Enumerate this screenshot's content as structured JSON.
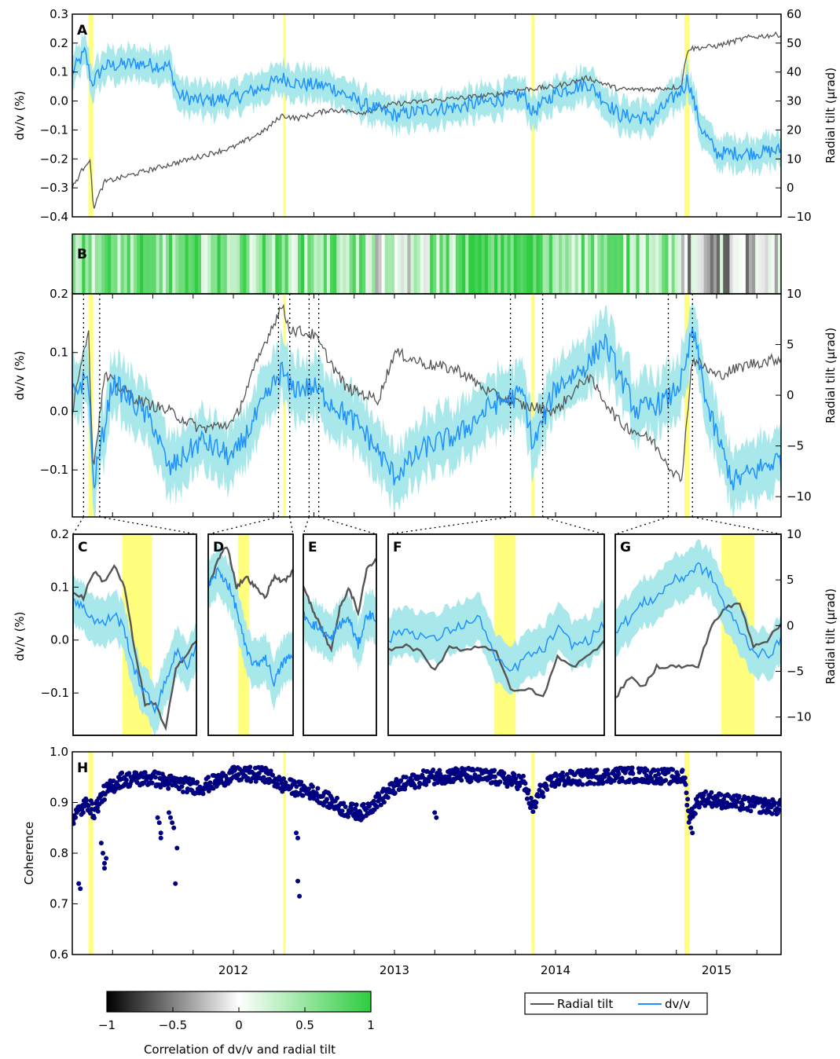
{
  "colors": {
    "tilt": "#555555",
    "dvv": "#1e90ff",
    "band": "#a8e8ea",
    "highlight": "#ffff66",
    "coherence": "#000080",
    "corr_low": "#000000",
    "corr_mid": "#ffffff",
    "corr_high": "#2ecc40"
  },
  "chart_data": [
    {
      "panel": "A",
      "type": "line",
      "ylabel": "dv/v (%)",
      "y2label": "Radial tilt (μrad)",
      "ylim": [
        -0.4,
        0.3
      ],
      "y2lim": [
        -10,
        60
      ],
      "yticks": [
        "0.3",
        "0.2",
        "0.1",
        "0.0",
        "−0.1",
        "−0.2",
        "−0.3",
        "−0.4"
      ],
      "y2ticks": [
        "60",
        "50",
        "40",
        "30",
        "20",
        "10",
        "0",
        "−10"
      ],
      "xlim": [
        2011.0,
        2015.4
      ],
      "highlights": [
        [
          2011.1,
          2011.13
        ],
        [
          2012.31,
          2012.32
        ],
        [
          2013.85,
          2013.87
        ],
        [
          2014.8,
          2014.83
        ]
      ],
      "series": [
        {
          "name": "dv/v",
          "x": [
            2011.0,
            2011.08,
            2011.12,
            2011.2,
            2011.4,
            2011.6,
            2011.66,
            2011.8,
            2012.0,
            2012.2,
            2012.3,
            2012.4,
            2012.6,
            2012.8,
            2013.0,
            2013.2,
            2013.4,
            2013.6,
            2013.8,
            2013.86,
            2014.0,
            2014.2,
            2014.4,
            2014.6,
            2014.8,
            2014.82,
            2014.9,
            2015.0,
            2015.2,
            2015.4
          ],
          "y": [
            0.1,
            0.17,
            0.06,
            0.12,
            0.13,
            0.12,
            0.02,
            0.0,
            0.01,
            0.05,
            0.08,
            0.06,
            0.05,
            -0.01,
            -0.05,
            -0.03,
            -0.02,
            0.0,
            0.02,
            -0.04,
            0.03,
            0.06,
            -0.05,
            -0.06,
            0.05,
            0.08,
            -0.09,
            -0.18,
            -0.18,
            -0.17
          ]
        },
        {
          "name": "Radial tilt",
          "x": [
            2011.0,
            2011.08,
            2011.11,
            2011.13,
            2011.2,
            2011.4,
            2011.6,
            2011.8,
            2012.0,
            2012.2,
            2012.3,
            2012.4,
            2012.6,
            2012.8,
            2013.0,
            2013.2,
            2013.4,
            2013.6,
            2013.8,
            2014.0,
            2014.2,
            2014.4,
            2014.6,
            2014.78,
            2014.82,
            2015.0,
            2015.2,
            2015.4
          ],
          "y": [
            -0.3,
            -0.22,
            -0.2,
            -0.37,
            -0.28,
            -0.25,
            -0.22,
            -0.19,
            -0.16,
            -0.1,
            -0.05,
            -0.06,
            -0.03,
            -0.04,
            -0.01,
            0.0,
            0.01,
            0.02,
            0.04,
            0.05,
            0.08,
            0.04,
            0.04,
            0.05,
            0.18,
            0.19,
            0.22,
            0.23
          ]
        }
      ]
    },
    {
      "panel": "B",
      "type": "line",
      "ylabel": "dv/v (%)",
      "y2label": "Radial tilt (μrad)",
      "ylim": [
        -0.18,
        0.2
      ],
      "yticks": [
        "0.2",
        "0.1",
        "0.0",
        "−0.1"
      ],
      "y2ticks": [
        "10",
        "5",
        "0",
        "−5",
        "−10"
      ],
      "colorbar_strip": "correlation per window, -1 to 1",
      "series": [
        {
          "name": "dv/v",
          "x": [
            2011.0,
            2011.1,
            2011.13,
            2011.25,
            2011.5,
            2011.6,
            2011.8,
            2012.0,
            2012.2,
            2012.3,
            2012.35,
            2012.5,
            2012.8,
            2013.0,
            2013.2,
            2013.4,
            2013.6,
            2013.8,
            2013.86,
            2014.0,
            2014.2,
            2014.3,
            2014.5,
            2014.7,
            2014.8,
            2014.85,
            2014.95,
            2015.1,
            2015.4
          ],
          "y": [
            0.03,
            0.06,
            -0.13,
            0.05,
            -0.02,
            -0.1,
            -0.05,
            -0.08,
            0.02,
            0.07,
            0.04,
            0.04,
            -0.03,
            -0.11,
            -0.06,
            -0.04,
            0.01,
            0.03,
            -0.06,
            0.04,
            0.08,
            0.12,
            0.0,
            0.02,
            0.06,
            0.14,
            0.0,
            -0.12,
            -0.08
          ]
        },
        {
          "name": "Radial tilt",
          "x": [
            2011.0,
            2011.05,
            2011.1,
            2011.13,
            2011.2,
            2011.4,
            2011.6,
            2011.8,
            2012.0,
            2012.2,
            2012.3,
            2012.35,
            2012.5,
            2012.7,
            2012.9,
            2013.0,
            2013.2,
            2013.4,
            2013.6,
            2013.8,
            2014.0,
            2014.2,
            2014.4,
            2014.6,
            2014.7,
            2014.78,
            2014.85,
            2015.0,
            2015.2,
            2015.4
          ],
          "y": [
            0.0,
            0.08,
            0.14,
            -0.1,
            0.06,
            0.02,
            0.0,
            -0.03,
            -0.02,
            0.12,
            0.18,
            0.14,
            0.13,
            0.04,
            0.02,
            0.1,
            0.08,
            0.07,
            0.03,
            0.01,
            0.0,
            0.06,
            -0.02,
            -0.05,
            -0.09,
            -0.12,
            0.09,
            0.06,
            0.08,
            0.09
          ]
        }
      ]
    },
    {
      "panel": "C–G",
      "type": "line",
      "ylabel": "dv/v (%)",
      "y2label": "Radial tilt (μrad)",
      "yticks": [
        "0.2",
        "0.1",
        "0.0",
        "−0.1"
      ],
      "y2ticks": [
        "10",
        "5",
        "0",
        "−5",
        "−10"
      ],
      "zooms": [
        {
          "label": "C",
          "dvv": [
            0.08,
            0.06,
            0.04,
            0.03,
            0.05,
            0.02,
            -0.06,
            -0.1,
            -0.13,
            -0.08,
            -0.02,
            -0.05,
            -0.01
          ],
          "tilt": [
            0.09,
            0.08,
            0.13,
            0.11,
            0.14,
            0.1,
            -0.02,
            -0.12,
            -0.12,
            -0.17,
            -0.05,
            -0.03,
            0.0
          ]
        },
        {
          "label": "D",
          "dvv": [
            0.1,
            0.13,
            0.11,
            0.06,
            -0.02,
            -0.05,
            -0.03,
            -0.08,
            -0.04,
            -0.03
          ],
          "tilt": [
            0.1,
            0.15,
            0.18,
            0.1,
            0.12,
            0.1,
            0.08,
            0.12,
            0.11,
            0.13
          ]
        },
        {
          "label": "E",
          "dvv": [
            0.05,
            0.03,
            0.02,
            0.0,
            0.03,
            0.04,
            -0.01,
            0.05,
            0.04
          ],
          "tilt": [
            0.1,
            0.06,
            0.02,
            -0.02,
            0.06,
            0.1,
            0.05,
            0.14,
            0.15
          ]
        },
        {
          "label": "F",
          "dvv": [
            0.0,
            0.02,
            0.01,
            0.0,
            0.02,
            0.03,
            0.04,
            -0.04,
            -0.06,
            -0.03,
            -0.02,
            0.02,
            -0.01,
            0.0,
            0.03
          ],
          "tilt": [
            -0.02,
            -0.01,
            -0.02,
            -0.06,
            -0.01,
            -0.02,
            -0.01,
            -0.02,
            -0.1,
            -0.09,
            -0.11,
            -0.03,
            -0.05,
            -0.03,
            0.0
          ]
        },
        {
          "label": "G",
          "dvv": [
            0.02,
            0.04,
            0.07,
            0.08,
            0.11,
            0.12,
            0.14,
            0.12,
            0.06,
            0.02,
            -0.02,
            -0.03,
            0.0
          ],
          "tilt": [
            -0.11,
            -0.07,
            -0.09,
            -0.05,
            -0.05,
            -0.05,
            -0.05,
            0.03,
            0.06,
            0.07,
            -0.01,
            0.0,
            0.03
          ]
        }
      ]
    },
    {
      "panel": "H",
      "type": "scatter",
      "ylabel": "Coherence",
      "ylim": [
        0.6,
        1.0
      ],
      "yticks": [
        "1.0",
        "0.9",
        "0.8",
        "0.7",
        "0.6"
      ],
      "xticks": [
        "2012",
        "2013",
        "2014",
        "2015"
      ],
      "xtick_values": [
        2012.0,
        2013.0,
        2014.0,
        2015.0
      ],
      "trend_x": [
        2011.0,
        2011.1,
        2011.13,
        2011.2,
        2011.3,
        2011.5,
        2011.6,
        2011.8,
        2012.0,
        2012.2,
        2012.3,
        2012.5,
        2012.7,
        2012.8,
        2013.0,
        2013.2,
        2013.4,
        2013.6,
        2013.8,
        2013.86,
        2013.9,
        2014.0,
        2014.2,
        2014.4,
        2014.6,
        2014.8,
        2014.83,
        2014.9,
        2015.1,
        2015.4
      ],
      "trend_y": [
        0.87,
        0.9,
        0.88,
        0.92,
        0.945,
        0.948,
        0.94,
        0.93,
        0.955,
        0.955,
        0.935,
        0.92,
        0.885,
        0.88,
        0.93,
        0.95,
        0.955,
        0.95,
        0.94,
        0.885,
        0.92,
        0.945,
        0.95,
        0.955,
        0.953,
        0.95,
        0.87,
        0.91,
        0.9,
        0.89
      ],
      "outliers_x": [
        2011.04,
        2011.05,
        2011.18,
        2011.19,
        2011.2,
        2011.2,
        2011.21,
        2011.53,
        2011.54,
        2011.55,
        2011.55,
        2011.6,
        2011.61,
        2011.62,
        2011.63,
        2011.64,
        2011.65,
        2012.39,
        2012.4,
        2012.4,
        2012.41,
        2013.25,
        2013.26,
        2014.84,
        2014.85
      ],
      "outliers_y": [
        0.74,
        0.73,
        0.82,
        0.8,
        0.78,
        0.77,
        0.79,
        0.87,
        0.86,
        0.84,
        0.83,
        0.88,
        0.87,
        0.86,
        0.85,
        0.74,
        0.81,
        0.84,
        0.83,
        0.745,
        0.715,
        0.88,
        0.87,
        0.85,
        0.84
      ]
    }
  ],
  "colorbar": {
    "label": "Correlation of dv/v and radial tilt",
    "ticks": [
      "−1",
      "−0.5",
      "0",
      "0.5",
      "1"
    ]
  },
  "legend": {
    "items": [
      {
        "label": "Radial tilt"
      },
      {
        "label": "dv/v"
      }
    ]
  },
  "panel_labels": [
    "A",
    "B",
    "C",
    "D",
    "E",
    "F",
    "G",
    "H"
  ]
}
